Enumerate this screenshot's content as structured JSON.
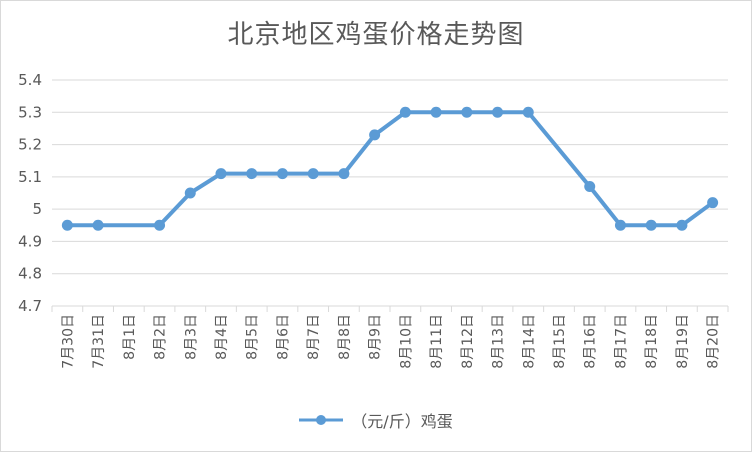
{
  "chart_data": {
    "type": "line",
    "title": "北京地区鸡蛋价格走势图",
    "xlabel": "",
    "ylabel": "",
    "categories": [
      "7月30日",
      "7月31日",
      "8月1日",
      "8月2日",
      "8月3日",
      "8月4日",
      "8月5日",
      "8月6日",
      "8月7日",
      "8月8日",
      "8月9日",
      "8月10日",
      "8月11日",
      "8月12日",
      "8月13日",
      "8月14日",
      "8月15日",
      "8月16日",
      "8月17日",
      "8月18日",
      "8月19日",
      "8月20日"
    ],
    "series": [
      {
        "name": "（元/斤）鸡蛋",
        "color": "#5b9bd5",
        "values": [
          4.95,
          4.95,
          null,
          4.95,
          5.05,
          5.11,
          5.11,
          5.11,
          5.11,
          5.11,
          5.23,
          5.3,
          5.3,
          5.3,
          5.3,
          5.3,
          null,
          5.07,
          4.95,
          4.95,
          4.95,
          5.02
        ]
      }
    ],
    "ylim": [
      4.7,
      5.4
    ],
    "yticks": [
      "4.7",
      "4.8",
      "4.9",
      "5",
      "5.1",
      "5.2",
      "5.3",
      "5.4"
    ],
    "grid": true,
    "legend_position": "bottom"
  }
}
